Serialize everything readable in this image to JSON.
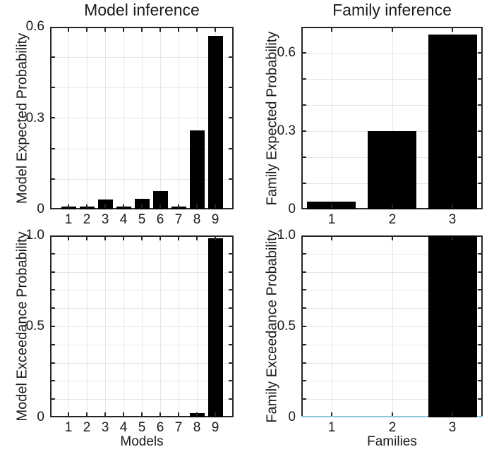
{
  "figure": {
    "colors": {
      "background": "#ffffff",
      "axis": "#262626",
      "grid": "#e6e6e6",
      "bar": "#000000",
      "text": "#1a1a1a",
      "baseline_blue": "#90c4dd"
    }
  },
  "chart_data": [
    {
      "id": "model_expected",
      "type": "bar",
      "title": "Model inference",
      "ylabel": "Model Expected Probability",
      "xlabel": "",
      "categories": [
        "1",
        "2",
        "3",
        "4",
        "5",
        "6",
        "7",
        "8",
        "9"
      ],
      "values": [
        0.01,
        0.01,
        0.033,
        0.01,
        0.035,
        0.06,
        0.01,
        0.26,
        0.57
      ],
      "xlim": [
        0,
        10
      ],
      "ylim": [
        0,
        0.6
      ],
      "yticks": [
        0,
        0.3,
        0.6
      ],
      "ytick_labels": [
        "0",
        "0.3",
        "0.6"
      ],
      "grid": true,
      "grid_step": 0.1,
      "bar_width_frac": 0.8
    },
    {
      "id": "family_expected",
      "type": "bar",
      "title": "Family inference",
      "ylabel": "Family Expected Probability",
      "xlabel": "",
      "categories": [
        "1",
        "2",
        "3"
      ],
      "values": [
        0.029,
        0.3,
        0.67
      ],
      "xlim": [
        0.5,
        3.5
      ],
      "ylim": [
        0,
        0.7
      ],
      "yticks": [
        0,
        0.3,
        0.6
      ],
      "ytick_labels": [
        "0",
        "0.3",
        "0.6"
      ],
      "grid": true,
      "grid_step": 0.1,
      "bar_width_frac": 0.8
    },
    {
      "id": "model_exceedance",
      "type": "bar",
      "title": "",
      "ylabel": "Model Exceedance Probability",
      "xlabel": "Models",
      "categories": [
        "1",
        "2",
        "3",
        "4",
        "5",
        "6",
        "7",
        "8",
        "9"
      ],
      "values": [
        0.001,
        0.001,
        0.001,
        0.001,
        0.001,
        0.001,
        0.001,
        0.022,
        0.986
      ],
      "xlim": [
        0,
        10
      ],
      "ylim": [
        0,
        1.0
      ],
      "yticks": [
        0,
        0.5,
        1.0
      ],
      "ytick_labels": [
        "0",
        "0.5",
        "1.0"
      ],
      "grid": true,
      "grid_step": 0.1,
      "bar_width_frac": 0.8
    },
    {
      "id": "family_exceedance",
      "type": "bar",
      "title": "",
      "ylabel": "Family Exceedance Probability",
      "xlabel": "Families",
      "categories": [
        "1",
        "2",
        "3"
      ],
      "values": [
        0.001,
        0.001,
        0.999
      ],
      "xlim": [
        0.5,
        3.5
      ],
      "ylim": [
        0,
        1.0
      ],
      "yticks": [
        0,
        0.5,
        1.0
      ],
      "ytick_labels": [
        "0",
        "0.5",
        "1.0"
      ],
      "grid": true,
      "grid_step": 0.1,
      "bar_width_frac": 0.8,
      "baseline": {
        "show": true,
        "color": "#90c4dd"
      }
    }
  ]
}
